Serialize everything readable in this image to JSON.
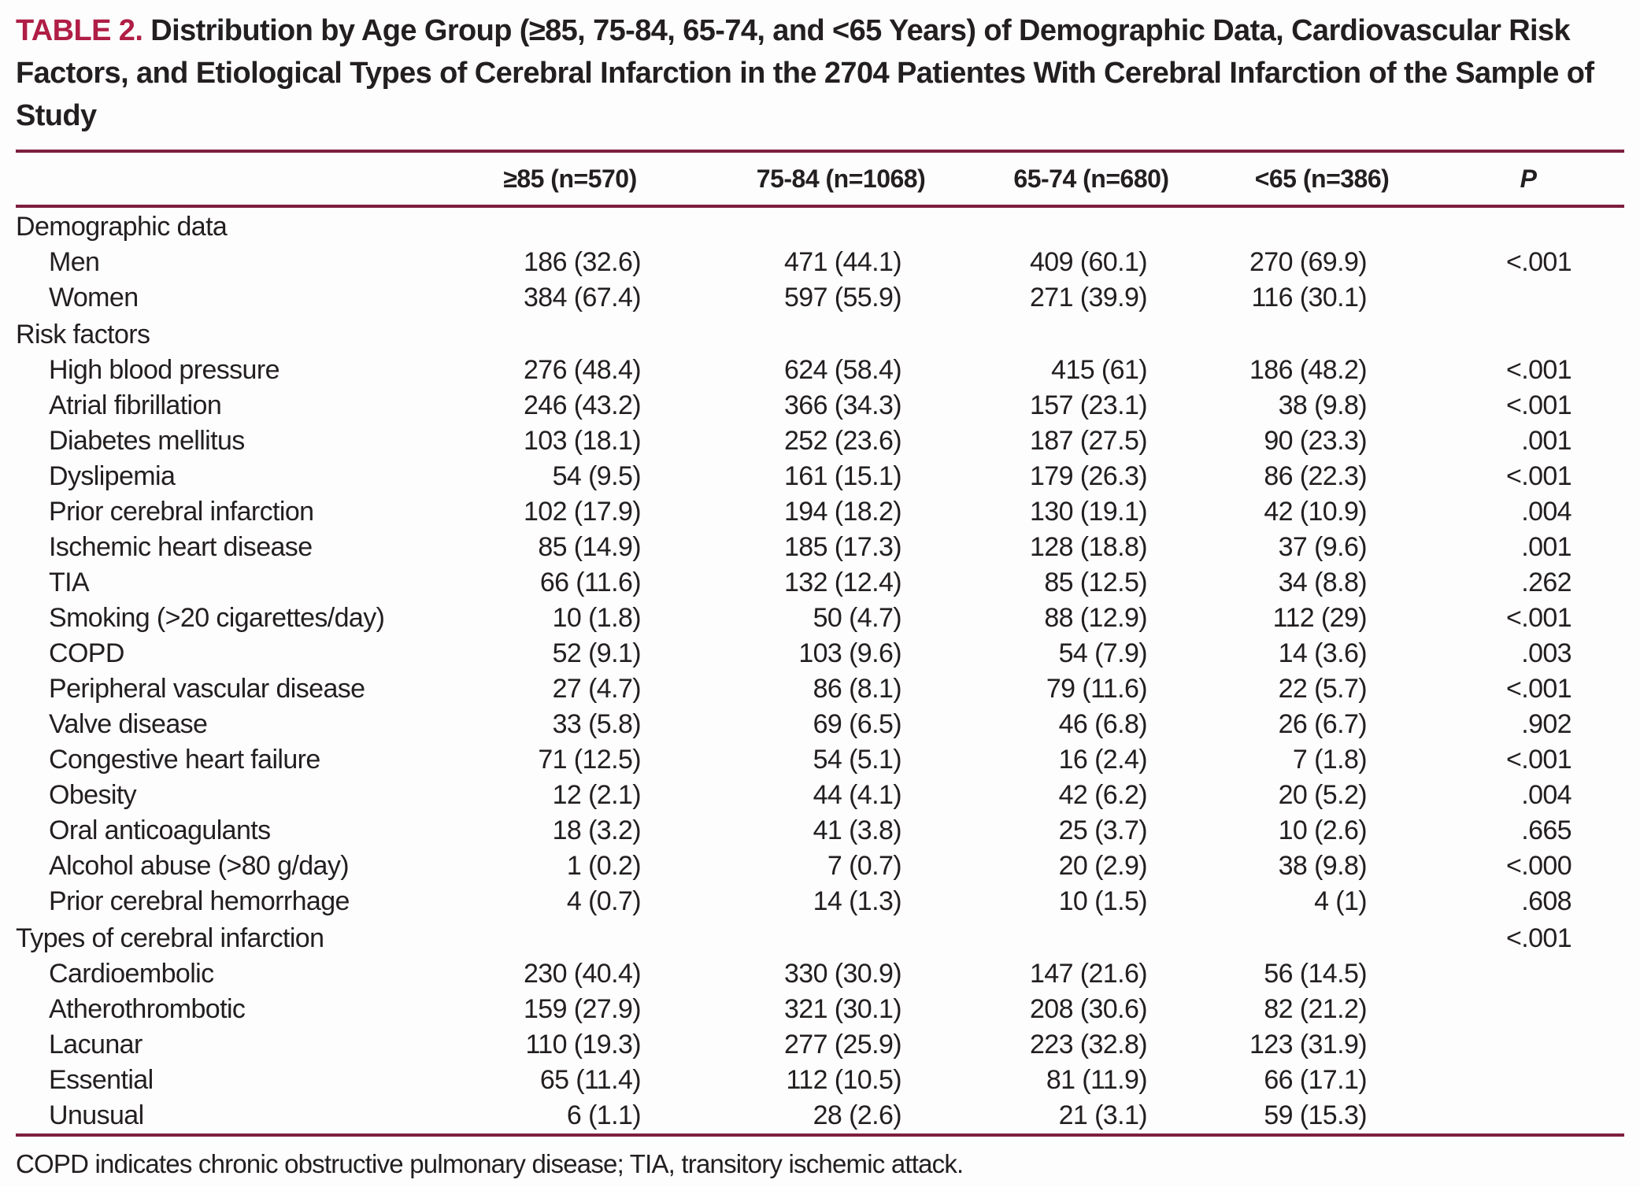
{
  "title": {
    "label": "TABLE 2.",
    "text": "Distribution by Age Group (≥85, 75-84, 65-74, and <65 Years) of Demographic Data, Cardiovascular Risk Factors, and Etiological Types of Cerebral Infarction in the 2704 Patientes With Cerebral Infarction of the Sample of Study"
  },
  "columns": [
    "",
    "≥85 (n=570)",
    "75-84 (n=1068)",
    "65-74 (n=680)",
    "<65 (n=386)",
    "P"
  ],
  "rows": [
    {
      "type": "section",
      "label": "Demographic data",
      "values": [
        "",
        "",
        "",
        ""
      ],
      "p": ""
    },
    {
      "type": "item",
      "label": "Men",
      "values": [
        "186 (32.6)",
        "471 (44.1)",
        "409 (60.1)",
        "270 (69.9)"
      ],
      "p": "<.001"
    },
    {
      "type": "item",
      "label": "Women",
      "values": [
        "384 (67.4)",
        "597 (55.9)",
        "271 (39.9)",
        "116 (30.1)"
      ],
      "p": ""
    },
    {
      "type": "section",
      "label": "Risk factors",
      "values": [
        "",
        "",
        "",
        ""
      ],
      "p": ""
    },
    {
      "type": "item",
      "label": "High blood pressure",
      "values": [
        "276 (48.4)",
        "624 (58.4)",
        "415 (61)",
        "186 (48.2)"
      ],
      "p": "<.001"
    },
    {
      "type": "item",
      "label": "Atrial fibrillation",
      "values": [
        "246 (43.2)",
        "366 (34.3)",
        "157 (23.1)",
        "38 (9.8)"
      ],
      "p": "<.001"
    },
    {
      "type": "item",
      "label": "Diabetes mellitus",
      "values": [
        "103 (18.1)",
        "252 (23.6)",
        "187 (27.5)",
        "90 (23.3)"
      ],
      "p": ".001"
    },
    {
      "type": "item",
      "label": "Dyslipemia",
      "values": [
        "54 (9.5)",
        "161 (15.1)",
        "179 (26.3)",
        "86 (22.3)"
      ],
      "p": "<.001"
    },
    {
      "type": "item",
      "label": "Prior cerebral infarction",
      "values": [
        "102 (17.9)",
        "194 (18.2)",
        "130 (19.1)",
        "42 (10.9)"
      ],
      "p": ".004"
    },
    {
      "type": "item",
      "label": "Ischemic heart disease",
      "values": [
        "85 (14.9)",
        "185 (17.3)",
        "128 (18.8)",
        "37 (9.6)"
      ],
      "p": ".001"
    },
    {
      "type": "item",
      "label": "TIA",
      "values": [
        "66 (11.6)",
        "132 (12.4)",
        "85 (12.5)",
        "34 (8.8)"
      ],
      "p": ".262"
    },
    {
      "type": "item",
      "label": "Smoking (>20 cigarettes/day)",
      "values": [
        "10 (1.8)",
        "50 (4.7)",
        "88 (12.9)",
        "112 (29)"
      ],
      "p": "<.001"
    },
    {
      "type": "item",
      "label": "COPD",
      "values": [
        "52 (9.1)",
        "103 (9.6)",
        "54 (7.9)",
        "14 (3.6)"
      ],
      "p": ".003"
    },
    {
      "type": "item",
      "label": "Peripheral vascular disease",
      "values": [
        "27 (4.7)",
        "86 (8.1)",
        "79 (11.6)",
        "22 (5.7)"
      ],
      "p": "<.001"
    },
    {
      "type": "item",
      "label": "Valve disease",
      "values": [
        "33 (5.8)",
        "69 (6.5)",
        "46 (6.8)",
        "26 (6.7)"
      ],
      "p": ".902"
    },
    {
      "type": "item",
      "label": "Congestive heart failure",
      "values": [
        "71 (12.5)",
        "54 (5.1)",
        "16 (2.4)",
        "7 (1.8)"
      ],
      "p": "<.001"
    },
    {
      "type": "item",
      "label": "Obesity",
      "values": [
        "12 (2.1)",
        "44 (4.1)",
        "42 (6.2)",
        "20 (5.2)"
      ],
      "p": ".004"
    },
    {
      "type": "item",
      "label": "Oral anticoagulants",
      "values": [
        "18 (3.2)",
        "41 (3.8)",
        "25 (3.7)",
        "10 (2.6)"
      ],
      "p": ".665"
    },
    {
      "type": "item",
      "label": "Alcohol abuse (>80 g/day)",
      "values": [
        "1 (0.2)",
        "7 (0.7)",
        "20 (2.9)",
        "38 (9.8)"
      ],
      "p": "<.000"
    },
    {
      "type": "item",
      "label": "Prior cerebral hemorrhage",
      "values": [
        "4 (0.7)",
        "14 (1.3)",
        "10 (1.5)",
        "4 (1)"
      ],
      "p": ".608"
    },
    {
      "type": "section",
      "label": "Types of cerebral infarction",
      "values": [
        "",
        "",
        "",
        ""
      ],
      "p": "<.001"
    },
    {
      "type": "item",
      "label": "Cardioembolic",
      "values": [
        "230 (40.4)",
        "330 (30.9)",
        "147 (21.6)",
        "56 (14.5)"
      ],
      "p": ""
    },
    {
      "type": "item",
      "label": "Atherothrombotic",
      "values": [
        "159 (27.9)",
        "321 (30.1)",
        "208 (30.6)",
        "82 (21.2)"
      ],
      "p": ""
    },
    {
      "type": "item",
      "label": "Lacunar",
      "values": [
        "110 (19.3)",
        "277 (25.9)",
        "223 (32.8)",
        "123 (31.9)"
      ],
      "p": ""
    },
    {
      "type": "item",
      "label": "Essential",
      "values": [
        "65 (11.4)",
        "112 (10.5)",
        "81 (11.9)",
        "66 (17.1)"
      ],
      "p": ""
    },
    {
      "type": "item",
      "label": "Unusual",
      "values": [
        "6 (1.1)",
        "28 (2.6)",
        "21 (3.1)",
        "59 (15.3)"
      ],
      "p": ""
    }
  ],
  "footnote": "COPD indicates chronic obstructive pulmonary disease; TIA, transitory ischemic attack.",
  "colors": {
    "accent": "#b01e45",
    "rule": "#7d1f3f",
    "text": "#231f20",
    "background": "#fdfdfd"
  }
}
